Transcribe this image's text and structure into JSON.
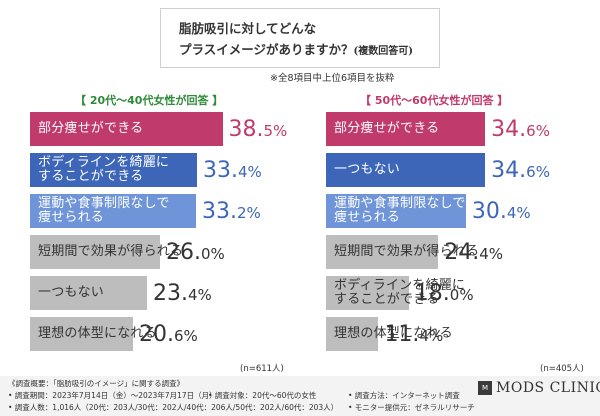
{
  "title": {
    "line1": "脂肪吸引に対してどんな",
    "line2": "プラスイメージがありますか？",
    "note": "(複数回答可)"
  },
  "subnote": "※全8項目中上位6項目を抜粋",
  "colors": {
    "magenta": "#c03a6b",
    "blue": "#3d66b8",
    "lightblue": "#6f95d8",
    "gray": "#bdbdbd",
    "magenta_text": "#c03a6b"
  },
  "chart_data": [
    {
      "type": "bar",
      "group_label": "【 20代～40代女性が回答 】",
      "n_label": "(n=611人)",
      "categories": [
        "部分痩せができる",
        "ボディラインを綺麗に\nすることができる",
        "運動や食事制限なしで\n痩せられる",
        "短期間で効果が得られる",
        "一つもない",
        "理想の体型になれる"
      ],
      "values": [
        38.5,
        33.4,
        33.2,
        26.0,
        23.4,
        20.6
      ],
      "value_labels": [
        [
          "38.",
          "5%"
        ],
        [
          "33.",
          "4%"
        ],
        [
          "33.",
          "2%"
        ],
        [
          "26.",
          "0%"
        ],
        [
          "23.",
          "4%"
        ],
        [
          "20.",
          "6%"
        ]
      ],
      "bar_colors": [
        "magenta",
        "blue",
        "lightblue",
        "gray",
        "gray",
        "gray"
      ]
    },
    {
      "type": "bar",
      "group_label": "【 50代～60代女性が回答 】",
      "n_label": "(n=405人)",
      "categories": [
        "部分痩せができる",
        "一つもない",
        "運動や食事制限なしで\n痩せられる",
        "短期間で効果が得られる",
        "ボディラインを綺麗に\nすることができる",
        "理想の体型になれる"
      ],
      "values": [
        34.6,
        34.6,
        30.4,
        24.4,
        18.0,
        11.4
      ],
      "value_labels": [
        [
          "34.",
          "6%"
        ],
        [
          "34.",
          "6%"
        ],
        [
          "30.",
          "4%"
        ],
        [
          "24.",
          "4%"
        ],
        [
          "18.",
          "0%"
        ],
        [
          "11.",
          "4%"
        ]
      ],
      "bar_colors": [
        "magenta",
        "blue",
        "lightblue",
        "gray",
        "gray",
        "gray"
      ]
    }
  ],
  "footer": {
    "line1": "《調査概要：「脂肪吸引のイメージ」に関する調査》",
    "period": "• 調査期間：2023年7月14日（金）～2023年7月17日（月）",
    "target": "• 調査対象：20代～60代の女性",
    "method": "• 調査方法：インターネット調査",
    "count": "• 調査人数：1,016人（20代：203人/30代：202人/40代：206人/50代：202人/60代：203人）",
    "monitor": "• モニター提供元：ゼネラルリサーチ",
    "logo_mark": "M",
    "logo_text": "MODS CLINIC"
  }
}
